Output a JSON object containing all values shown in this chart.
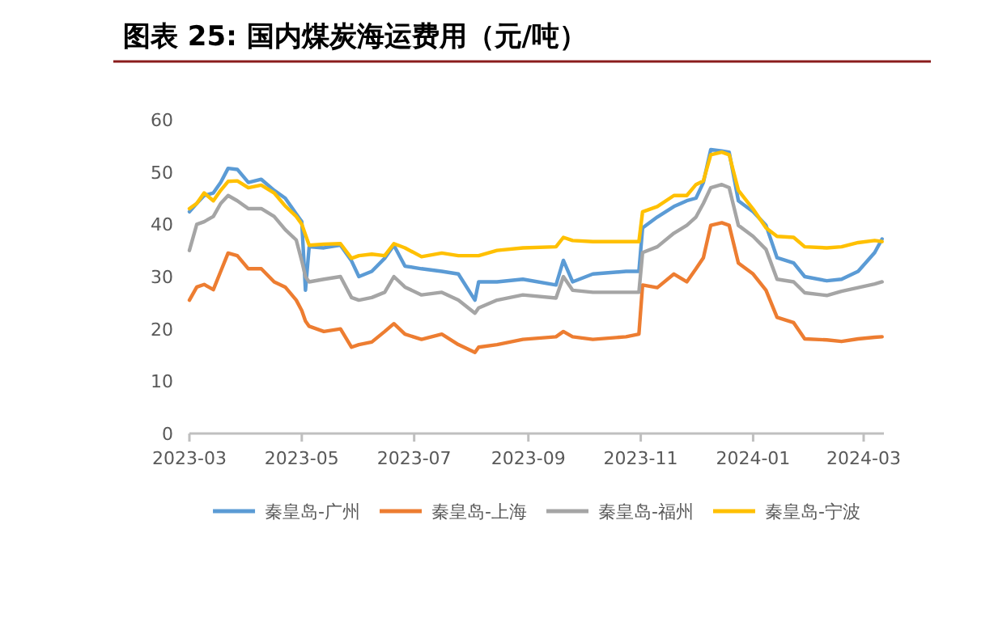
{
  "chart_data": {
    "type": "line",
    "title": "图表 25:  国内煤炭海运费用（元/吨）",
    "x": [
      "2023-03-01",
      "2023-03-05",
      "2023-03-09",
      "2023-03-14",
      "2023-03-18",
      "2023-03-22",
      "2023-03-27",
      "2023-04-02",
      "2023-04-09",
      "2023-04-16",
      "2023-04-22",
      "2023-04-28",
      "2023-05-01",
      "2023-05-03",
      "2023-05-05",
      "2023-05-13",
      "2023-05-22",
      "2023-05-28",
      "2023-06-01",
      "2023-06-08",
      "2023-06-15",
      "2023-06-20",
      "2023-06-26",
      "2023-07-05",
      "2023-07-16",
      "2023-07-25",
      "2023-08-03",
      "2023-08-05",
      "2023-08-15",
      "2023-08-29",
      "2023-09-16",
      "2023-09-20",
      "2023-09-25",
      "2023-10-06",
      "2023-10-24",
      "2023-10-31",
      "2023-11-02",
      "2023-11-10",
      "2023-11-19",
      "2023-11-26",
      "2023-12-01",
      "2023-12-05",
      "2023-12-09",
      "2023-12-15",
      "2023-12-19",
      "2023-12-24",
      "2024-01-01",
      "2024-01-08",
      "2024-01-14",
      "2024-01-23",
      "2024-01-29",
      "2024-02-10",
      "2024-02-18",
      "2024-02-27",
      "2024-03-07",
      "2024-03-11"
    ],
    "series": [
      {
        "name": "秦皇岛-广州",
        "color": "#5b9bd5",
        "values": [
          42.4,
          44,
          45.5,
          46,
          48,
          50.7,
          50.5,
          48,
          48.6,
          46.5,
          45,
          42,
          40.5,
          27.4,
          35.7,
          35.5,
          36,
          33,
          30,
          31,
          33.5,
          36,
          32,
          31.5,
          31,
          30.5,
          25.5,
          29,
          29,
          29.5,
          28.4,
          33.1,
          29,
          30.5,
          31,
          31,
          39.3,
          41.4,
          43.4,
          44.5,
          45,
          48,
          54.3,
          54,
          53.8,
          44.5,
          42.4,
          39.8,
          33.6,
          32.6,
          30,
          29.2,
          29.5,
          31,
          34.6,
          37.2
        ]
      },
      {
        "name": "秦皇岛-上海",
        "color": "#ed7d31",
        "values": [
          25.5,
          28,
          28.5,
          27.5,
          31,
          34.5,
          34,
          31.5,
          31.5,
          29,
          28,
          25.5,
          23.5,
          21.5,
          20.5,
          19.5,
          20,
          16.5,
          17,
          17.5,
          19.5,
          21,
          19,
          18,
          19,
          17,
          15.5,
          16.5,
          17,
          18,
          18.5,
          19.5,
          18.5,
          18,
          18.5,
          19,
          28.4,
          27.9,
          30.5,
          29,
          31.5,
          33.6,
          39.8,
          40.3,
          39.8,
          32.6,
          30.5,
          27.4,
          22.2,
          21.2,
          18.1,
          17.9,
          17.6,
          18.1,
          18.4,
          18.5
        ]
      },
      {
        "name": "秦皇岛-福州",
        "color": "#a5a5a5",
        "values": [
          35,
          40,
          40.5,
          41.5,
          44,
          45.5,
          44.5,
          43,
          43,
          41.5,
          39,
          37,
          33,
          30,
          29,
          29.5,
          30,
          26,
          25.5,
          26,
          27,
          30,
          28,
          26.5,
          27,
          25.5,
          23,
          24,
          25.5,
          26.5,
          25.9,
          30,
          27.4,
          27,
          27,
          27,
          34.6,
          35.7,
          38.3,
          39.8,
          41.4,
          44,
          47,
          47.6,
          47,
          39.8,
          37.7,
          35.2,
          29.5,
          29,
          26.9,
          26.4,
          27.2,
          27.9,
          28.6,
          29
        ]
      },
      {
        "name": "秦皇岛-宁波",
        "color": "#ffc000",
        "values": [
          43,
          44,
          46,
          44.5,
          46.5,
          48.2,
          48.3,
          47,
          47.5,
          46,
          43.5,
          41.5,
          40,
          38,
          36,
          36.2,
          36.3,
          33.5,
          34,
          34.3,
          34,
          36.3,
          35.5,
          33.8,
          34.5,
          34,
          34,
          34,
          35,
          35.5,
          35.7,
          37.5,
          36.9,
          36.7,
          36.7,
          36.7,
          42.4,
          43.4,
          45.5,
          45.5,
          47.6,
          48.3,
          53.3,
          53.8,
          53.3,
          46.5,
          42.9,
          39.3,
          37.7,
          37.5,
          35.7,
          35.5,
          35.7,
          36.5,
          36.9,
          36.7
        ]
      }
    ],
    "xlim": [
      "2023-03-01",
      "2024-03-12"
    ],
    "xticks": [
      {
        "value": "2023-03-01",
        "label": "2023-03"
      },
      {
        "value": "2023-05-01",
        "label": "2023-05"
      },
      {
        "value": "2023-07-01",
        "label": "2023-07"
      },
      {
        "value": "2023-09-01",
        "label": "2023-09"
      },
      {
        "value": "2023-11-01",
        "label": "2023-11"
      },
      {
        "value": "2024-01-01",
        "label": "2024-01"
      },
      {
        "value": "2024-03-01",
        "label": "2024-03"
      }
    ],
    "ylim": [
      0,
      60
    ],
    "yticks": [
      0,
      10,
      20,
      30,
      40,
      50,
      60
    ],
    "grid": false,
    "legend": "bottom",
    "marker": "none",
    "line_style": "solid"
  }
}
